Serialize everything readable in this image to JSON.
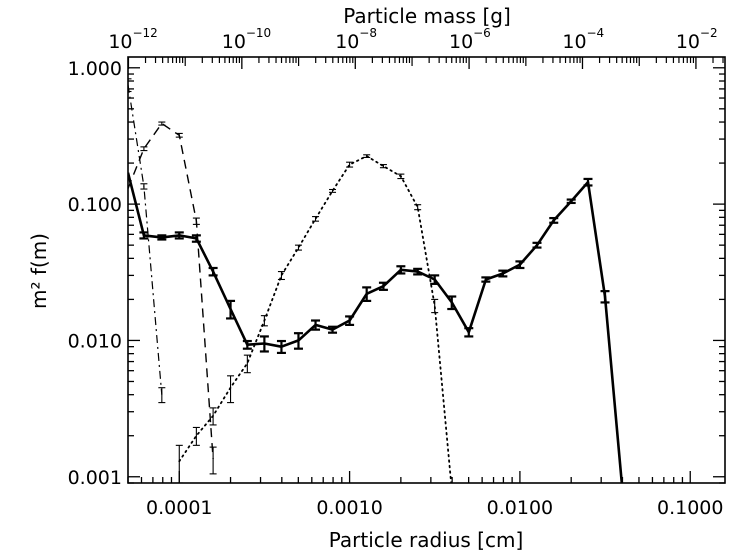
{
  "chart_data": {
    "type": "line",
    "xlabel": "Particle radius [cm]",
    "ylabel": "m² f(m)",
    "x2label": "Particle mass [g]",
    "xscale": "log",
    "yscale": "log",
    "xlim": [
      5e-05,
      0.16
    ],
    "ylim": [
      0.0009,
      1.2
    ],
    "x_tick_labels": [
      {
        "value": 0.0001,
        "label": "0.0001"
      },
      {
        "value": 0.001,
        "label": "0.0010"
      },
      {
        "value": 0.01,
        "label": "0.0100"
      },
      {
        "value": 0.1,
        "label": "0.1000"
      }
    ],
    "y_tick_labels": [
      {
        "value": 0.001,
        "label": "0.001"
      },
      {
        "value": 0.01,
        "label": "0.010"
      },
      {
        "value": 0.1,
        "label": "0.100"
      },
      {
        "value": 1.0,
        "label": "1.000"
      }
    ],
    "x2_tick_labels": [
      {
        "radius": 5.03e-05,
        "base": "10",
        "exp": "−12"
      },
      {
        "radius": 0.000233,
        "base": "10",
        "exp": "−10"
      },
      {
        "radius": 0.00108,
        "base": "10",
        "exp": "−8"
      },
      {
        "radius": 0.00503,
        "base": "10",
        "exp": "−6"
      },
      {
        "radius": 0.0233,
        "base": "10",
        "exp": "−4"
      },
      {
        "radius": 0.108,
        "base": "10",
        "exp": "−2"
      }
    ],
    "grid": false,
    "legend": "none",
    "series": [
      {
        "style": "solid",
        "color": "#000000",
        "points": [
          {
            "x": 5e-05,
            "y": 0.17
          },
          {
            "x": 6.2e-05,
            "y": 0.059,
            "err": 0.003
          },
          {
            "x": 7.9e-05,
            "y": 0.057,
            "err": 0.002
          },
          {
            "x": 0.0001,
            "y": 0.059,
            "err": 0.003
          },
          {
            "x": 0.000126,
            "y": 0.056,
            "err": 0.003
          },
          {
            "x": 0.000158,
            "y": 0.032,
            "err": 0.002
          },
          {
            "x": 0.0002,
            "y": 0.017,
            "err": 0.0025
          },
          {
            "x": 0.000251,
            "y": 0.0093,
            "err": 0.0006
          },
          {
            "x": 0.000316,
            "y": 0.0095,
            "err": 0.0012
          },
          {
            "x": 0.000398,
            "y": 0.009,
            "err": 0.0009
          },
          {
            "x": 0.000501,
            "y": 0.01,
            "err": 0.0013
          },
          {
            "x": 0.000631,
            "y": 0.013,
            "err": 0.001
          },
          {
            "x": 0.000794,
            "y": 0.012,
            "err": 0.0006
          },
          {
            "x": 0.001,
            "y": 0.014,
            "err": 0.001
          },
          {
            "x": 0.00126,
            "y": 0.022,
            "err": 0.0025
          },
          {
            "x": 0.00158,
            "y": 0.025,
            "err": 0.0015
          },
          {
            "x": 0.002,
            "y": 0.033,
            "err": 0.002
          },
          {
            "x": 0.00251,
            "y": 0.032,
            "err": 0.0015
          },
          {
            "x": 0.00316,
            "y": 0.028,
            "err": 0.002
          },
          {
            "x": 0.00398,
            "y": 0.019,
            "err": 0.002
          },
          {
            "x": 0.00501,
            "y": 0.0115,
            "err": 0.0008
          },
          {
            "x": 0.00631,
            "y": 0.028,
            "err": 0.001
          },
          {
            "x": 0.00794,
            "y": 0.031,
            "err": 0.0015
          },
          {
            "x": 0.01,
            "y": 0.036,
            "err": 0.002
          },
          {
            "x": 0.0126,
            "y": 0.05,
            "err": 0.002
          },
          {
            "x": 0.0158,
            "y": 0.076,
            "err": 0.003
          },
          {
            "x": 0.02,
            "y": 0.105,
            "err": 0.003
          },
          {
            "x": 0.0251,
            "y": 0.145,
            "err": 0.008
          },
          {
            "x": 0.0316,
            "y": 0.021,
            "err": 0.002
          },
          {
            "x": 0.0398,
            "y": 0.00085
          }
        ]
      },
      {
        "style": "dashed",
        "color": "#000000",
        "points": [
          {
            "x": 5e-05,
            "y": 0.13
          },
          {
            "x": 6.2e-05,
            "y": 0.255,
            "err": 0.008
          },
          {
            "x": 7.9e-05,
            "y": 0.39,
            "err": 0.01
          },
          {
            "x": 0.0001,
            "y": 0.32,
            "err": 0.01
          },
          {
            "x": 0.000126,
            "y": 0.075,
            "err": 0.004
          },
          {
            "x": 0.000158,
            "y": 0.00135,
            "err": 0.0003
          }
        ]
      },
      {
        "style": "dot-dash",
        "color": "#000000",
        "points": [
          {
            "x": 5e-05,
            "y": 0.75,
            "err": 0.08
          },
          {
            "x": 6.2e-05,
            "y": 0.135,
            "err": 0.006
          },
          {
            "x": 7.9e-05,
            "y": 0.004,
            "err": 0.0005
          }
        ]
      },
      {
        "style": "dotted",
        "color": "#000000",
        "points": [
          {
            "x": 0.0001,
            "y": 0.0013,
            "err": 0.0004
          },
          {
            "x": 0.000126,
            "y": 0.002,
            "err": 0.0003
          },
          {
            "x": 0.000158,
            "y": 0.0028,
            "err": 0.0004
          },
          {
            "x": 0.0002,
            "y": 0.0045,
            "err": 0.001
          },
          {
            "x": 0.000251,
            "y": 0.0068,
            "err": 0.001
          },
          {
            "x": 0.000316,
            "y": 0.014,
            "err": 0.0012
          },
          {
            "x": 0.000398,
            "y": 0.03,
            "err": 0.002
          },
          {
            "x": 0.000501,
            "y": 0.048,
            "err": 0.002
          },
          {
            "x": 0.000631,
            "y": 0.078,
            "err": 0.003
          },
          {
            "x": 0.000794,
            "y": 0.125,
            "err": 0.003
          },
          {
            "x": 0.001,
            "y": 0.195,
            "err": 0.008
          },
          {
            "x": 0.00126,
            "y": 0.225,
            "err": 0.005
          },
          {
            "x": 0.00158,
            "y": 0.19,
            "err": 0.005
          },
          {
            "x": 0.002,
            "y": 0.16,
            "err": 0.006
          },
          {
            "x": 0.00251,
            "y": 0.095,
            "err": 0.004
          },
          {
            "x": 0.00316,
            "y": 0.018,
            "err": 0.002
          },
          {
            "x": 0.00398,
            "y": 0.0008
          }
        ]
      }
    ]
  }
}
